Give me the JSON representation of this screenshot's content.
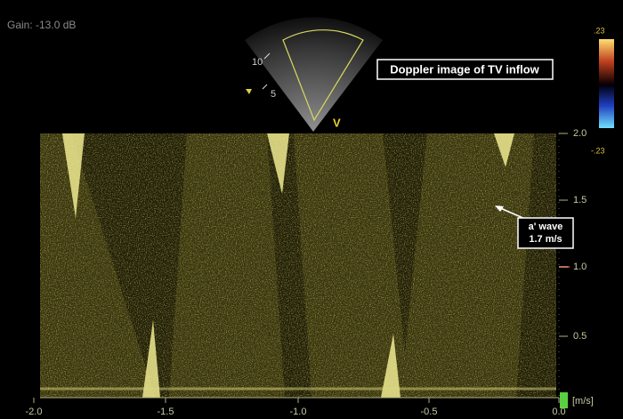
{
  "header": {
    "gain": "Gain: -13.0 dB",
    "title": "Doppler image of TV inflow",
    "sector_depths": [
      "10",
      "5"
    ],
    "sector_marker": "V"
  },
  "color_bar": {
    "top": ".23",
    "bottom": "-.23"
  },
  "annotation": {
    "line1": "a' wave",
    "line2": "1.7 m/s"
  },
  "velocity_axis": {
    "ticks": [
      "2.0",
      "1.5",
      "1.0",
      "0.5"
    ],
    "unit": "[m/s]"
  },
  "time_axis": {
    "ticks": [
      "-2.0",
      "-1.5",
      "-1.0",
      "-0.5",
      "0.0"
    ]
  }
}
